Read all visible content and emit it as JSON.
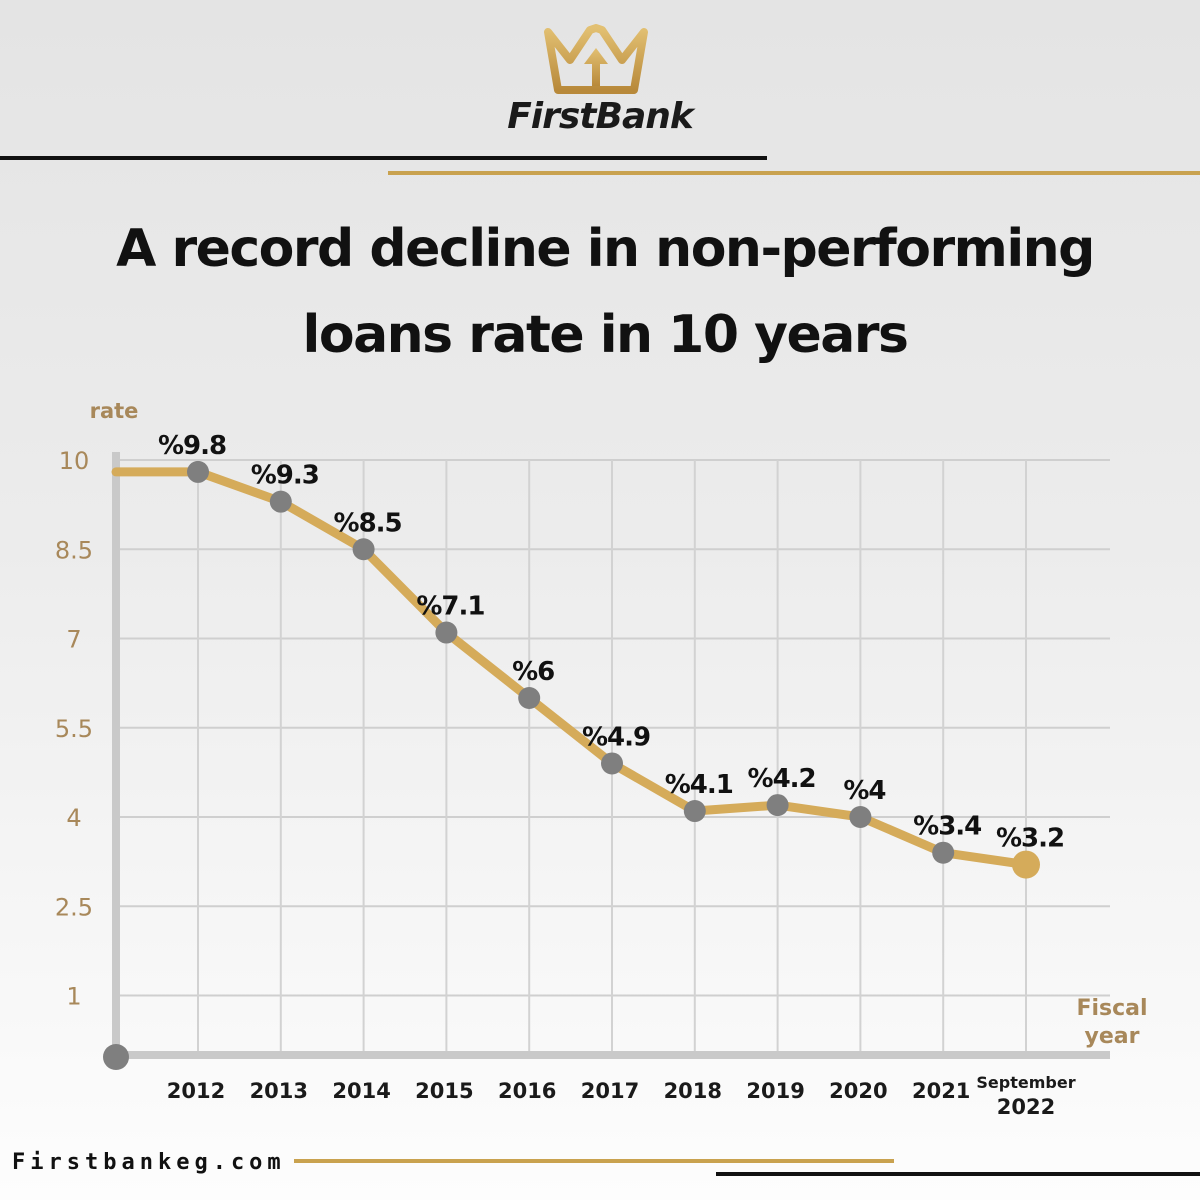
{
  "brand": {
    "name": "FirstBank",
    "logo_icon": "crown-icon",
    "gold_color": "#c9a24f"
  },
  "title_line1": "A record decline in non-performing",
  "title_line2": "loans rate in 10 years",
  "footer": {
    "website": "Firstbankeg.com"
  },
  "chart_data": {
    "type": "line",
    "title": "A record decline in non-performing loans rate in 10 years",
    "ylabel": "rate",
    "xlabel": [
      "Fiscal",
      "year"
    ],
    "ylim": [
      0,
      10
    ],
    "yticks": [
      "10",
      "8.5",
      "7",
      "5.5",
      "4",
      "2.5",
      "1"
    ],
    "ytick_values": [
      10,
      8.5,
      7,
      5.5,
      4,
      2.5,
      1
    ],
    "categories": [
      "2012",
      "2013",
      "2014",
      "2015",
      "2016",
      "2017",
      "2018",
      "2019",
      "2020",
      "2021",
      [
        "September",
        "2022"
      ]
    ],
    "values": [
      9.8,
      9.3,
      8.5,
      7.1,
      6,
      4.9,
      4.1,
      4.2,
      4,
      3.4,
      3.2
    ],
    "data_labels": [
      "%9.8",
      "%9.3",
      "%8.5",
      "%7.1",
      "%6",
      "%4.9",
      "%4.1",
      "%4.2",
      "%4",
      "%3.4",
      "%3.2"
    ],
    "grid": true,
    "line_color": "#d5ab5a",
    "point_color": "#7f7f7f",
    "last_point_color": "#d5ab5a",
    "axis_color": "#c9c9c9",
    "tick_color": "#a8885a"
  }
}
